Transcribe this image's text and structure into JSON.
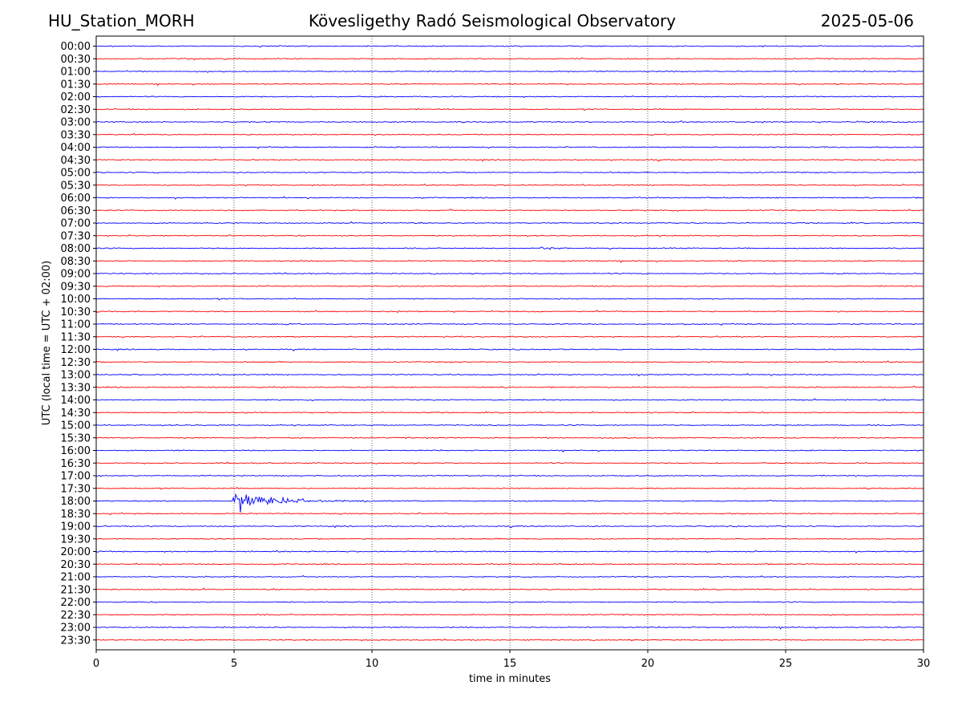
{
  "header": {
    "station": "HU_Station_MORH",
    "title": "Kövesligethy Radó Seismological Observatory",
    "date": "2025-05-06"
  },
  "chart_data": {
    "type": "line",
    "xlabel": "time in minutes",
    "ylabel": "UTC (local time = UTC + 02:00)",
    "xlim": [
      0,
      30
    ],
    "xticks": [
      0,
      5,
      10,
      15,
      20,
      25,
      30
    ],
    "grid": "vertical dotted at 5-minute intervals",
    "row_labels": [
      "00:00",
      "00:30",
      "01:00",
      "01:30",
      "02:00",
      "02:30",
      "03:00",
      "03:30",
      "04:00",
      "04:30",
      "05:00",
      "05:30",
      "06:00",
      "06:30",
      "07:00",
      "07:30",
      "08:00",
      "08:30",
      "09:00",
      "09:30",
      "10:00",
      "10:30",
      "11:00",
      "11:30",
      "12:00",
      "12:30",
      "13:00",
      "13:30",
      "14:00",
      "14:30",
      "15:00",
      "15:30",
      "16:00",
      "16:30",
      "17:00",
      "17:30",
      "18:00",
      "18:30",
      "19:00",
      "19:30",
      "20:00",
      "20:30",
      "21:00",
      "21:30",
      "22:00",
      "22:30",
      "23:00",
      "23:30"
    ],
    "trace_colors": [
      "#0000ff",
      "#ff0000"
    ],
    "events": [
      {
        "row": "08:00",
        "onset_min": 16.1,
        "duration_min": 2.8,
        "amplitude": 0.9
      },
      {
        "row": "18:00",
        "onset_min": 4.95,
        "duration_min": 5.0,
        "amplitude": 5.0
      }
    ]
  }
}
